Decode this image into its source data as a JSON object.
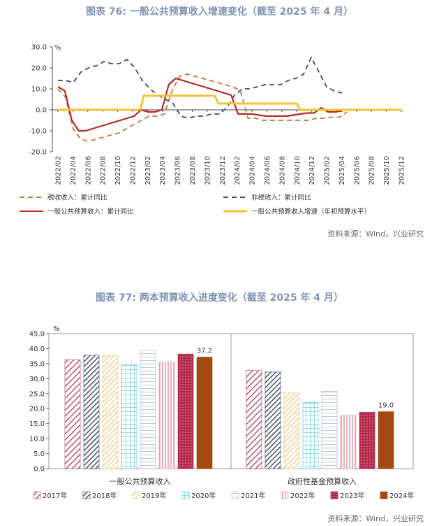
{
  "chart1": {
    "title": "图表 76: 一般公共预算收入增速变化（截至 2025 年 4 月）",
    "source": "资料来源：Wind，兴业研究",
    "unit": "%",
    "ylim": [
      -20,
      30
    ],
    "yticks": [
      "30.0",
      "20.0",
      "10.0",
      "0.0",
      "-10.0",
      "-20.0"
    ],
    "x_labels": [
      "2022/02",
      "2022/04",
      "2022/06",
      "2022/08",
      "2022/10",
      "2022/12",
      "2023/02",
      "2023/04",
      "2023/06",
      "2023/08",
      "2023/10",
      "2023/12",
      "2024/02",
      "2024/04",
      "2024/06",
      "2024/08",
      "2024/10",
      "2024/12",
      "2025/02",
      "2025/04",
      "2025/06",
      "2025/08",
      "2025/10",
      "2025/12"
    ],
    "chart_data": {
      "type": "line",
      "series": [
        {
          "name": "税收收入：累计同比",
          "color": "#c8742c",
          "style": "dashed",
          "values": [
            10,
            6,
            -9,
            -14,
            -15,
            -14,
            -13,
            -12,
            -11,
            -9,
            -7,
            -5,
            -3,
            -3,
            -2,
            9,
            16,
            17,
            16,
            15,
            14,
            13,
            12,
            11,
            9,
            -4,
            -4,
            -5,
            -5,
            -5,
            -5,
            -5,
            -5,
            -5,
            -4,
            -4,
            -3.5,
            -3.5,
            -1
          ]
        },
        {
          "name": "非税收入：累计同比",
          "color": "#3d4a5f",
          "style": "dashed",
          "values": [
            14,
            14,
            13,
            18,
            20,
            21,
            23,
            22,
            22,
            24,
            20,
            14,
            10,
            7,
            5,
            3,
            -3,
            -4,
            -3,
            -3,
            -2,
            -2,
            1,
            7,
            10,
            10,
            11,
            12,
            12,
            12,
            14,
            15,
            17,
            25,
            18,
            11,
            9,
            8
          ]
        },
        {
          "name": "一般公共预算收入：累计同比",
          "color": "#b22a24",
          "style": "solid",
          "values": [
            11,
            9,
            -5,
            -10,
            -10,
            -9,
            -8,
            -7,
            -6,
            -5,
            -4,
            -3,
            0,
            -1,
            -1,
            0,
            12,
            15,
            14,
            13,
            12,
            11,
            10,
            9,
            8,
            7,
            -2,
            -2,
            -2,
            -2.5,
            -3,
            -3,
            -3,
            -3,
            -2.5,
            -2,
            -1.5,
            -1.5,
            1,
            -1,
            -1,
            -0.5
          ]
        },
        {
          "name": "一般公共预算收入增速（年初预算水平）",
          "color": "#f5c12e",
          "style": "solid",
          "values": [
            0,
            0,
            0,
            0,
            0,
            0,
            0,
            0,
            0,
            0,
            0,
            0,
            0,
            0,
            0,
            0,
            0,
            0,
            0,
            0,
            0,
            0,
            0,
            6.7,
            6.7,
            6.7,
            6.7,
            6.7,
            6.7,
            6.7,
            6.7,
            6.7,
            6.7,
            6.7,
            6.7,
            6.7,
            6.7,
            6.7,
            6.7,
            6.7,
            6.7,
            6.7,
            6.7,
            3,
            3,
            3,
            3,
            3,
            3,
            3,
            3,
            3,
            3,
            3,
            3,
            3,
            3,
            3,
            3,
            3,
            3,
            3,
            3,
            3,
            3,
            0,
            0,
            0,
            0,
            0,
            0,
            0,
            0,
            0,
            0,
            0,
            0,
            0,
            0,
            0,
            0,
            0,
            0,
            0,
            0,
            0,
            0,
            0,
            0,
            0,
            0,
            0,
            0
          ]
        }
      ]
    }
  },
  "chart2": {
    "title": "图表 77: 两本预算收入进度变化（截至 2025 年 4 月）",
    "source": "资料来源：Wind，兴业研究",
    "unit": "%",
    "ylim": [
      0,
      45
    ],
    "yticks": [
      "45.0",
      "40.0",
      "35.0",
      "30.0",
      "25.0",
      "20.0",
      "15.0",
      "10.0",
      "5.0",
      "0.0"
    ],
    "chart_data": {
      "type": "bar",
      "categories": [
        "一般公共预算收入",
        "政府性基金预算收入"
      ],
      "series": [
        {
          "name": "2017年",
          "values": [
            36.3,
            32.7
          ]
        },
        {
          "name": "2018年",
          "values": [
            37.8,
            32.2
          ]
        },
        {
          "name": "2019年",
          "values": [
            37.7,
            25.2
          ]
        },
        {
          "name": "2020年",
          "values": [
            34.8,
            22.0
          ]
        },
        {
          "name": "2021年",
          "values": [
            39.5,
            25.8
          ]
        },
        {
          "name": "2022年",
          "values": [
            35.5,
            17.8
          ]
        },
        {
          "name": "2023年",
          "values": [
            38.2,
            18.8
          ]
        },
        {
          "name": "2024年",
          "values": [
            37.2,
            19.0
          ]
        }
      ],
      "data_labels": [
        "37.2",
        "19.0"
      ]
    }
  }
}
